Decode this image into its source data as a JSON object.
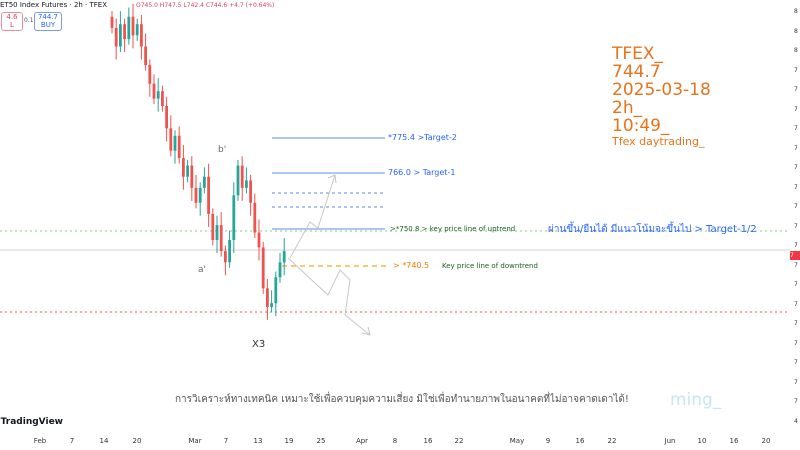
{
  "header": {
    "symbol_line": "ET50 Index Futures · 2h · TFEX",
    "ohlc": "O745.0 H747.5 L742.4 C744.6 +4.7 (+0.64%)",
    "sell_price": "4.6",
    "sell_label": "L",
    "quantity": "0.1",
    "buy_price": "744.7",
    "buy_label": "BUY"
  },
  "overlay": {
    "lines": [
      "TFEX_",
      "744.7",
      "2025-03-18",
      "2h_",
      "10:49_"
    ],
    "tagline": "Tfex daytrading_",
    "watermark": "ming_",
    "disclaimer": "การวิเคราะห์ทางเทคนิค เหมาะใช้เพื่อควบคุมความเสี่ยง มิใช่เพื่อทำนายภาพในอนาคตที่ไม่อาจคาดเดาได้!",
    "brand": "TradingView",
    "color": "#e8731a"
  },
  "annotations": {
    "target2": "*775.4 >Target-2",
    "target1": "766.0 > Target-1",
    "uptrend": ">*750.8 > key price line of uptrend",
    "uptrend_thai": "ผ่านขึ้น/ยืนได้ มีแนวโน้มจะขึ้นไป > Target-1/2",
    "downtrend_price": "> *740.5",
    "downtrend": "Key price line of downtrend",
    "wave_a": "a'",
    "wave_b": "b'",
    "wave_x": "X3"
  },
  "chart_data": {
    "type": "candlestick",
    "interval": "2h",
    "x_ticks": [
      "Feb",
      "7",
      "14",
      "20",
      "Mar",
      "7",
      "13",
      "19",
      "25",
      "Apr",
      "8",
      "16",
      "22",
      "May",
      "9",
      "16",
      "22",
      "Jun",
      "10",
      "16",
      "20"
    ],
    "y_ticks": [
      "8",
      "8",
      "8",
      "7",
      "7",
      "7",
      "7",
      "7",
      "7",
      "7",
      "7",
      "7",
      "7",
      "7",
      "7",
      "7",
      "7",
      "7",
      "7",
      "7",
      "7",
      "4"
    ],
    "current_price": 744.7,
    "current_price_tag": "7",
    "levels": {
      "target2": 775.4,
      "target1": 766.0,
      "uptrend_key": 750.8,
      "downtrend_key": 740.5,
      "support": 728.6
    },
    "colors": {
      "up": "#26a69a",
      "down": "#ef5350",
      "levels": "#5b8def",
      "downtrend": "#f5a623",
      "support": "#ef5350",
      "uptrend_line": "#66bb6a"
    },
    "closes": [
      805,
      800,
      806,
      802,
      808,
      803,
      806,
      800,
      795,
      790,
      786,
      788,
      784,
      778,
      772,
      776,
      770,
      765,
      768,
      762,
      758,
      762,
      765,
      755,
      748,
      752,
      745,
      742,
      748,
      760,
      768,
      762,
      764,
      758,
      750,
      746,
      735,
      730,
      731,
      738,
      742,
      745
    ]
  }
}
